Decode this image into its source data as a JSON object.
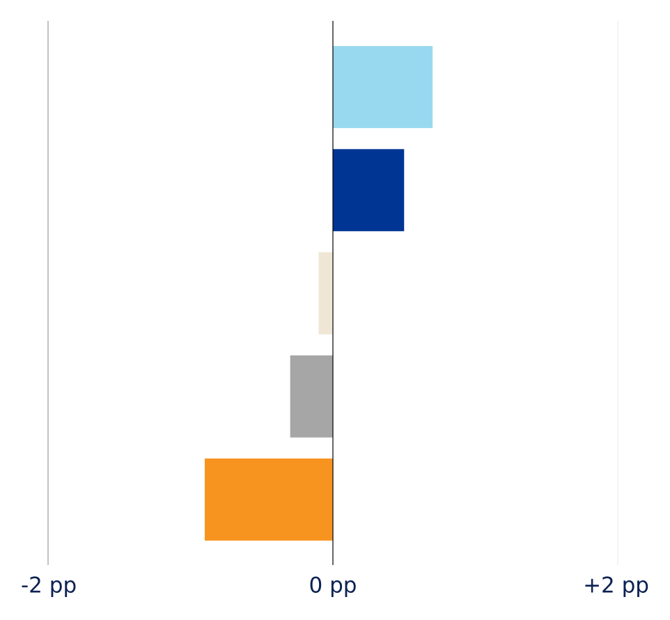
{
  "chart_data": {
    "type": "bar",
    "orientation": "horizontal",
    "categories": [
      null,
      null,
      null,
      null,
      null
    ],
    "values": [
      0.7,
      0.5,
      -0.1,
      -0.3,
      -0.9
    ],
    "colors": [
      "#99d9ef",
      "#003594",
      "#efe6d6",
      "#a6a6a6",
      "#f7941f"
    ],
    "xlim": [
      -2,
      2
    ],
    "xticks": [
      {
        "value": -2,
        "label": "-2 pp"
      },
      {
        "value": 0,
        "label": "0 pp"
      },
      {
        "value": 2,
        "label": "+2 pp"
      }
    ],
    "grid": true
  }
}
